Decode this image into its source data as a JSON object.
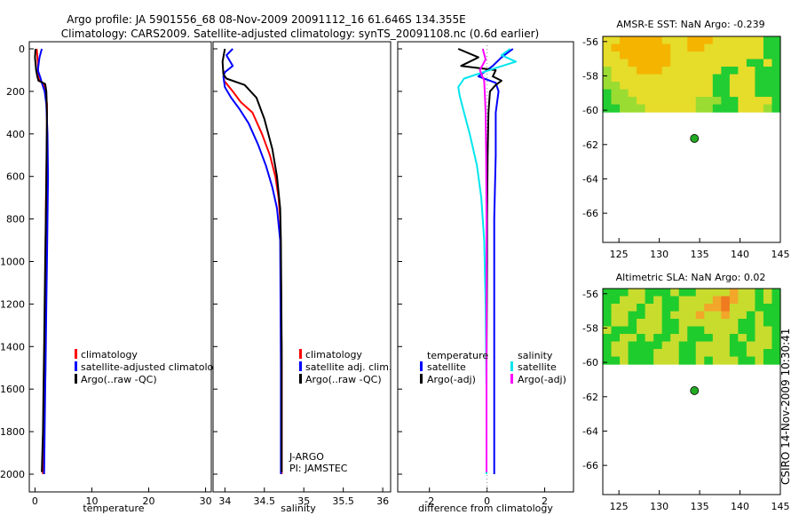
{
  "header": {
    "line1": "Argo profile: JA 5901556_68 08-Nov-2009 20091112_16 61.646S 134.355E",
    "line2": "Climatology: CARS2009. Satellite-adjusted climatology: synTS_20091108.nc (0.6d earlier)"
  },
  "footer_stamp": "CSIRO 14-Nov-2009 10:30:41",
  "chart_data": [
    {
      "id": "temperature",
      "type": "line",
      "xlabel": "temperature",
      "ylabel": "",
      "xlim": [
        -1,
        31
      ],
      "ylim": [
        2050,
        0
      ],
      "xticks": [
        0,
        10,
        20,
        30
      ],
      "xtick_labels": [
        "0",
        "10",
        "20",
        "30"
      ],
      "yticks": [
        0,
        200,
        400,
        600,
        800,
        1000,
        1200,
        1400,
        1600,
        1800,
        2000
      ],
      "ytick_labels": [
        "0",
        "200",
        "400",
        "600",
        "800",
        "1000",
        "1200",
        "1400",
        "1600",
        "1800",
        "2000"
      ],
      "legend": [
        "climatology",
        "satellite-adjusted climatology",
        "Argo(..raw -QC)"
      ],
      "series": [
        {
          "name": "climatology",
          "color": "#ff0000",
          "x": [
            0.3,
            0.5,
            0.6,
            1.5,
            1.9,
            2.1,
            2.1,
            2.0,
            1.9,
            1.85,
            1.8,
            1.75,
            1.7,
            1.65,
            1.6,
            1.55,
            1.5,
            1.45,
            1.4
          ],
          "y": [
            0,
            60,
            140,
            165,
            200,
            260,
            400,
            600,
            800,
            1000,
            1200,
            1300,
            1400,
            1500,
            1600,
            1700,
            1800,
            1900,
            2000
          ]
        },
        {
          "name": "satellite-adjusted climatology",
          "color": "#0000ff",
          "x": [
            1.2,
            0.8,
            0.5,
            1.0,
            1.2,
            1.7,
            2.0,
            2.2,
            2.3,
            2.2,
            2.1,
            2.0,
            1.9,
            1.85,
            1.8,
            1.75,
            1.7,
            1.65,
            1.6
          ],
          "y": [
            0,
            40,
            100,
            140,
            160,
            200,
            260,
            400,
            600,
            800,
            1000,
            1200,
            1400,
            1500,
            1600,
            1700,
            1800,
            1900,
            2000
          ]
        },
        {
          "name": "Argo(..raw -QC)",
          "color": "#000000",
          "x": [
            0.1,
            0.0,
            0.2,
            0.4,
            0.6,
            1.8,
            2.0,
            2.1,
            2.0,
            1.9,
            1.8,
            1.7,
            1.6,
            1.5,
            1.4,
            1.3,
            1.2
          ],
          "y": [
            0,
            40,
            100,
            130,
            150,
            165,
            200,
            300,
            600,
            800,
            1000,
            1200,
            1400,
            1600,
            1800,
            1900,
            1990
          ]
        }
      ]
    },
    {
      "id": "salinity",
      "type": "line",
      "xlabel": "salinity",
      "ylabel": "",
      "xlim": [
        33.85,
        36.1
      ],
      "ylim": [
        2050,
        0
      ],
      "xticks": [
        34,
        34.5,
        35,
        35.5,
        36
      ],
      "xtick_labels": [
        "34",
        "34.5",
        "35",
        "35.5",
        "36"
      ],
      "legend": [
        "climatology",
        "satellite adj. clim.",
        "Argo(..raw -QC)"
      ],
      "annotations": [
        "J-ARGO",
        "PI: JAMSTEC"
      ],
      "series": [
        {
          "name": "climatology",
          "color": "#ff0000",
          "x": [
            33.98,
            33.99,
            34.1,
            34.2,
            34.35,
            34.47,
            34.57,
            34.64,
            34.68,
            34.7,
            34.71,
            34.72,
            34.72
          ],
          "y": [
            100,
            150,
            200,
            250,
            300,
            400,
            500,
            600,
            700,
            800,
            1000,
            1500,
            2000
          ]
        },
        {
          "name": "satellite adj. clim.",
          "color": "#0000ff",
          "x": [
            34.1,
            34.02,
            34.1,
            34.0,
            33.98,
            34.0,
            34.08,
            34.18,
            34.3,
            34.42,
            34.52,
            34.6,
            34.66,
            34.7,
            34.71,
            34.71
          ],
          "y": [
            0,
            30,
            80,
            110,
            130,
            180,
            230,
            280,
            350,
            450,
            550,
            650,
            750,
            900,
            1500,
            2000
          ]
        },
        {
          "name": "Argo(..raw -QC)",
          "color": "#000000",
          "x": [
            34.0,
            33.97,
            33.98,
            34.02,
            34.25,
            34.4,
            34.5,
            34.6,
            34.66,
            34.7,
            34.71,
            34.72,
            34.72
          ],
          "y": [
            0,
            60,
            120,
            140,
            170,
            230,
            330,
            470,
            600,
            750,
            900,
            1400,
            1990
          ]
        }
      ]
    },
    {
      "id": "difference",
      "type": "line",
      "xlabel": "difference from climatology",
      "ylabel": "",
      "xlim": [
        -3.1,
        3.0
      ],
      "ylim": [
        2050,
        0
      ],
      "xticks": [
        -2,
        0,
        2
      ],
      "xtick_labels": [
        "-2",
        "0",
        "2"
      ],
      "legend_groups": [
        {
          "title": "temperature",
          "items": [
            "satellite",
            "Argo(-adj)"
          ]
        },
        {
          "title": "salinity",
          "items": [
            "satellite",
            "Argo(-adj)"
          ]
        }
      ],
      "series": [
        {
          "name": "temperature satellite",
          "color": "#0000ff",
          "x": [
            0.9,
            0.5,
            0.2,
            -0.3,
            0.3,
            0.4,
            0.3,
            0.3,
            0.25,
            0.25,
            0.25,
            0.25,
            0.25,
            0.25
          ],
          "y": [
            0,
            40,
            80,
            130,
            160,
            200,
            300,
            500,
            800,
            1000,
            1400,
            1600,
            1800,
            2000
          ]
        },
        {
          "name": "temperature Argo(-adj)",
          "color": "#000000",
          "x": [
            -1.0,
            -0.3,
            -0.9,
            0.3,
            0.2,
            0.5,
            0.3,
            0.1,
            0.05,
            0.02,
            0.0,
            0.0,
            -0.02,
            -0.02,
            -0.02
          ],
          "y": [
            0,
            40,
            80,
            100,
            130,
            150,
            170,
            200,
            300,
            500,
            800,
            1000,
            1500,
            1800,
            1990
          ]
        },
        {
          "name": "salinity satellite",
          "color": "#00e5ee",
          "x": [
            0.8,
            0.5,
            1.0,
            0.3,
            -0.8,
            -1.0,
            -0.95,
            -0.8,
            -0.6,
            -0.35,
            -0.2,
            -0.1,
            -0.05,
            -0.02,
            -0.02
          ],
          "y": [
            0,
            30,
            60,
            90,
            140,
            180,
            220,
            300,
            400,
            550,
            700,
            900,
            1200,
            1600,
            2000
          ]
        },
        {
          "name": "salinity Argo(-adj)",
          "color": "#ff00ff",
          "x": [
            -0.15,
            -0.05,
            -0.25,
            -0.1,
            -0.08,
            -0.05,
            -0.03,
            -0.02,
            -0.02,
            -0.02
          ],
          "y": [
            0,
            50,
            100,
            150,
            200,
            300,
            500,
            800,
            1500,
            1990
          ]
        }
      ]
    },
    {
      "id": "sst-map",
      "type": "heatmap",
      "title": "AMSR-E SST: NaN Argo: -0.239",
      "xlim": [
        123,
        145
      ],
      "ylim": [
        -67.7,
        -55.7
      ],
      "xticks": [
        125,
        130,
        135,
        140,
        145
      ],
      "xtick_labels": [
        "125",
        "130",
        "135",
        "140",
        "145"
      ],
      "yticks": [
        -56,
        -58,
        -60,
        -62,
        -64,
        -66
      ],
      "ytick_labels": [
        "-56",
        "-58",
        "-60",
        "-62",
        "-64",
        "-66"
      ],
      "data_extent": {
        "lat_min": -60.1,
        "lat_max": -55.7
      },
      "marker": {
        "lon": 134.355,
        "lat": -61.646,
        "color": "#22aa22"
      },
      "cells": [
        "yyoooooyyyoooyyyyyygg",
        "yoooooooyyooyyyyyyygg",
        "yyooooooyyyyyyyyyyygg",
        "yyyoooooyyyyyyyyyggyg",
        "lyyyoooyyyyyyyggyyggg",
        "lyyyyyyyyyyyyggyyyggg",
        "llyyyyyyyyyyyggyyyggg",
        "gllyyyyyyyyyyggyyyggg",
        "glllyyyyyyylllggyyyyg",
        "gglllyyyyyyllgggyyylg"
      ],
      "palette": {
        "o": "#f5b400",
        "y": "#e6dc2a",
        "l": "#9bdc32",
        "g": "#22cc33"
      }
    },
    {
      "id": "sla-map",
      "type": "heatmap",
      "title": "Altimetric SLA: NaN Argo: 0.02",
      "xlim": [
        123,
        145
      ],
      "ylim": [
        -67.7,
        -55.7
      ],
      "xticks": [
        125,
        130,
        135,
        140,
        145
      ],
      "xtick_labels": [
        "125",
        "130",
        "135",
        "140",
        "145"
      ],
      "yticks": [
        -56,
        -58,
        -60,
        -62,
        -64,
        -66
      ],
      "ytick_labels": [
        "-56",
        "-58",
        "-60",
        "-62",
        "-64",
        "-66"
      ],
      "data_extent": {
        "lat_min": -60.1,
        "lat_max": -55.7
      },
      "marker": {
        "lon": 134.355,
        "lat": -61.646,
        "color": "#22aa22"
      },
      "cells": [
        "gggyygggyggyyyyoyygyg",
        "ggyyygyggyyyyoroyygyg",
        "gyyygyyggyyyooryyyggg",
        "gyyggyygyyyoyyoyygygg",
        "gyygyyyggyyyyyyyggygg",
        "ygggyyyggyggyyyyggyyg",
        "ggyygyggyygggyygygyyg",
        "gyyggggyyggyyyyggyyyg",
        "gyygggyyyggyyyyggyygg",
        "ggygggyyyggygyyyggygg"
      ],
      "palette": {
        "g": "#1fcc2d",
        "y": "#c8dc2e",
        "o": "#f2a62a",
        "r": "#f07a20"
      }
    }
  ]
}
